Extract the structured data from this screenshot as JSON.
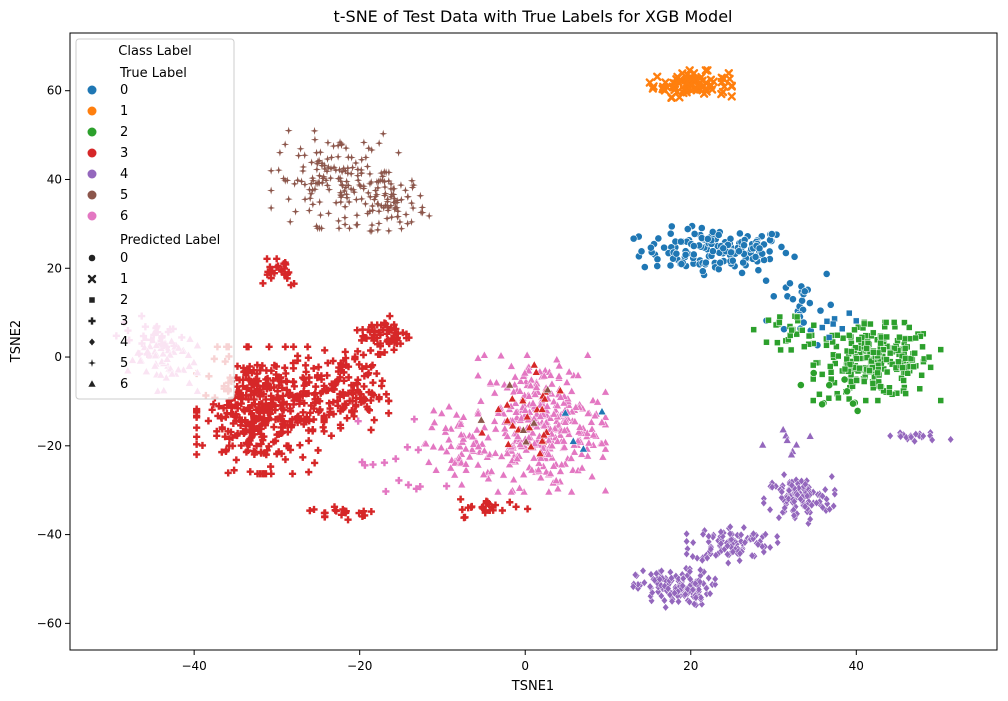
{
  "chart_data": {
    "type": "scatter",
    "title": "t-SNE of Test Data with True Labels for XGB Model",
    "xlabel": "TSNE1",
    "ylabel": "TSNE2",
    "xlim": [
      -55,
      57
    ],
    "ylim": [
      -66,
      73
    ],
    "xticks": [
      -40,
      -20,
      0,
      20,
      40
    ],
    "yticks": [
      -60,
      -40,
      -20,
      0,
      20,
      40,
      60
    ],
    "grid": false,
    "legend": {
      "placement": "top-left",
      "title": "Class Label",
      "true_header": "True Label",
      "pred_header": "Predicted Label",
      "classes": [
        "0",
        "1",
        "2",
        "3",
        "4",
        "5",
        "6"
      ],
      "marker_names": [
        "circle",
        "x",
        "square",
        "plus",
        "diamond",
        "star",
        "triangle"
      ]
    },
    "colors": [
      "#1f77b4",
      "#ff7f0e",
      "#2ca02c",
      "#d62728",
      "#9467bd",
      "#8c564b",
      "#e377c2"
    ],
    "clusters": [
      {
        "true": 0,
        "pred": 0,
        "n": 150,
        "regions": [
          [
            23,
            24,
            9,
            5
          ]
        ]
      },
      {
        "true": 0,
        "pred": 0,
        "n": 28,
        "regions": [
          [
            33.5,
            12,
            4,
            9
          ]
        ]
      },
      {
        "true": 1,
        "pred": 1,
        "n": 85,
        "regions": [
          [
            20,
            61.5,
            4.5,
            2.8
          ]
        ]
      },
      {
        "true": 2,
        "pred": 2,
        "n": 240,
        "regions": [
          [
            42.5,
            -1,
            7,
            8
          ]
        ]
      },
      {
        "true": 2,
        "pred": 2,
        "n": 30,
        "regions": [
          [
            32,
            6,
            4,
            4
          ]
        ]
      },
      {
        "true": 4,
        "pred": 4,
        "n": 110,
        "regions": [
          [
            33,
            -32,
            4,
            5
          ]
        ]
      },
      {
        "true": 4,
        "pred": 4,
        "n": 100,
        "regions": [
          [
            25,
            -42,
            5,
            4
          ]
        ]
      },
      {
        "true": 4,
        "pred": 4,
        "n": 140,
        "regions": [
          [
            18,
            -52,
            4.5,
            4
          ]
        ]
      },
      {
        "true": 4,
        "pred": 4,
        "n": 20,
        "regions": [
          [
            47,
            -18,
            4,
            1.2
          ]
        ]
      },
      {
        "true": 5,
        "pred": 5,
        "n": 150,
        "regions": [
          [
            -23,
            40,
            7,
            10
          ]
        ]
      },
      {
        "true": 5,
        "pred": 5,
        "n": 80,
        "regions": [
          [
            -16,
            35,
            4,
            6
          ]
        ]
      },
      {
        "true": 3,
        "pred": 3,
        "n": 380,
        "regions": [
          [
            -32,
            -12,
            7,
            13
          ]
        ]
      },
      {
        "true": 3,
        "pred": 3,
        "n": 140,
        "regions": [
          [
            -22,
            -8,
            5,
            9
          ]
        ]
      },
      {
        "true": 3,
        "pred": 3,
        "n": 60,
        "regions": [
          [
            -17,
            5,
            3,
            4
          ]
        ]
      },
      {
        "true": 3,
        "pred": 3,
        "n": 25,
        "regions": [
          [
            -30,
            20,
            3,
            4
          ]
        ]
      },
      {
        "true": 3,
        "pred": 3,
        "n": 20,
        "regions": [
          [
            -22,
            -35,
            4,
            1.5
          ]
        ]
      },
      {
        "true": 3,
        "pred": 3,
        "n": 25,
        "regions": [
          [
            -4,
            -34,
            4,
            2
          ]
        ]
      },
      {
        "true": 6,
        "pred": 6,
        "n": 330,
        "regions": [
          [
            2,
            -15,
            7,
            14
          ]
        ]
      },
      {
        "true": 6,
        "pred": 6,
        "n": 60,
        "regions": [
          [
            -8,
            -20,
            4,
            8
          ]
        ]
      },
      {
        "true": 6,
        "pred": 6,
        "n": 60,
        "regions": [
          [
            -44,
            0,
            4,
            7
          ]
        ]
      },
      {
        "true": 6,
        "pred": 3,
        "n": 25,
        "regions": [
          [
            -45,
            5,
            4,
            4
          ]
        ]
      },
      {
        "true": 3,
        "pred": 6,
        "n": 25,
        "regions": [
          [
            0,
            -15,
            6,
            12
          ]
        ]
      },
      {
        "true": 5,
        "pred": 6,
        "n": 6,
        "regions": [
          [
            -2,
            -10,
            6,
            10
          ]
        ]
      },
      {
        "true": 0,
        "pred": 6,
        "n": 4,
        "regions": [
          [
            5,
            -15,
            5,
            10
          ]
        ]
      },
      {
        "true": 2,
        "pred": 0,
        "n": 10,
        "regions": [
          [
            37,
            -8,
            4,
            5
          ]
        ]
      },
      {
        "true": 0,
        "pred": 2,
        "n": 8,
        "regions": [
          [
            37,
            5,
            4,
            5
          ]
        ]
      },
      {
        "true": 4,
        "pred": 6,
        "n": 8,
        "regions": [
          [
            32,
            -20,
            4,
            4
          ]
        ]
      },
      {
        "true": 6,
        "pred": 3,
        "n": 15,
        "regions": [
          [
            -15,
            -25,
            5,
            10
          ]
        ]
      }
    ]
  }
}
